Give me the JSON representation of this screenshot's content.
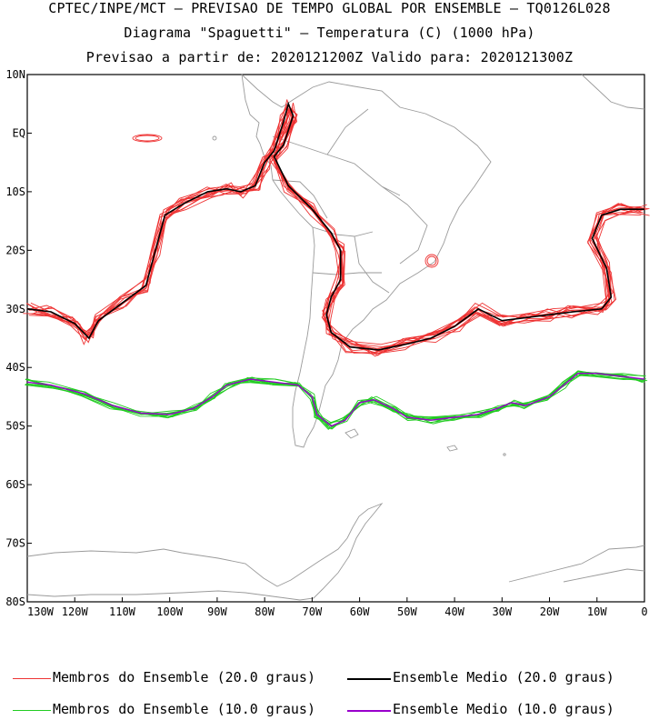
{
  "header": {
    "line1": "CPTEC/INPE/MCT — PREVISAO DE TEMPO GLOBAL POR ENSEMBLE — TQ0126L028",
    "line2": "Diagrama \"Spaguetti\" — Temperatura (C) (1000 hPa)",
    "line3": "Previsao a partir de: 2020121200Z  Valido para: 2020121300Z"
  },
  "map": {
    "lat_labels": [
      "10N",
      "EQ",
      "10S",
      "20S",
      "30S",
      "40S",
      "50S",
      "60S",
      "70S",
      "80S"
    ],
    "lon_labels": [
      "130W",
      "120W",
      "110W",
      "100W",
      "90W",
      "80W",
      "70W",
      "60W",
      "50W",
      "40W",
      "30W",
      "20W",
      "10W",
      "0"
    ],
    "lon_range": [
      -130,
      0
    ],
    "lat_range": [
      -80,
      10
    ]
  },
  "legend": {
    "item1": "Membros do Ensemble (20.0 graus)",
    "item2": "Ensemble Medio (20.0 graus)",
    "item3": "Membros do Ensemble (10.0 graus)",
    "item4": "Ensemble Medio (10.0 graus)"
  },
  "colors": {
    "members_20": "#ee3333",
    "mean_20": "#000000",
    "members_10": "#22cc22",
    "mean_10": "#9900cc",
    "coast": "#9a9a9a"
  }
}
